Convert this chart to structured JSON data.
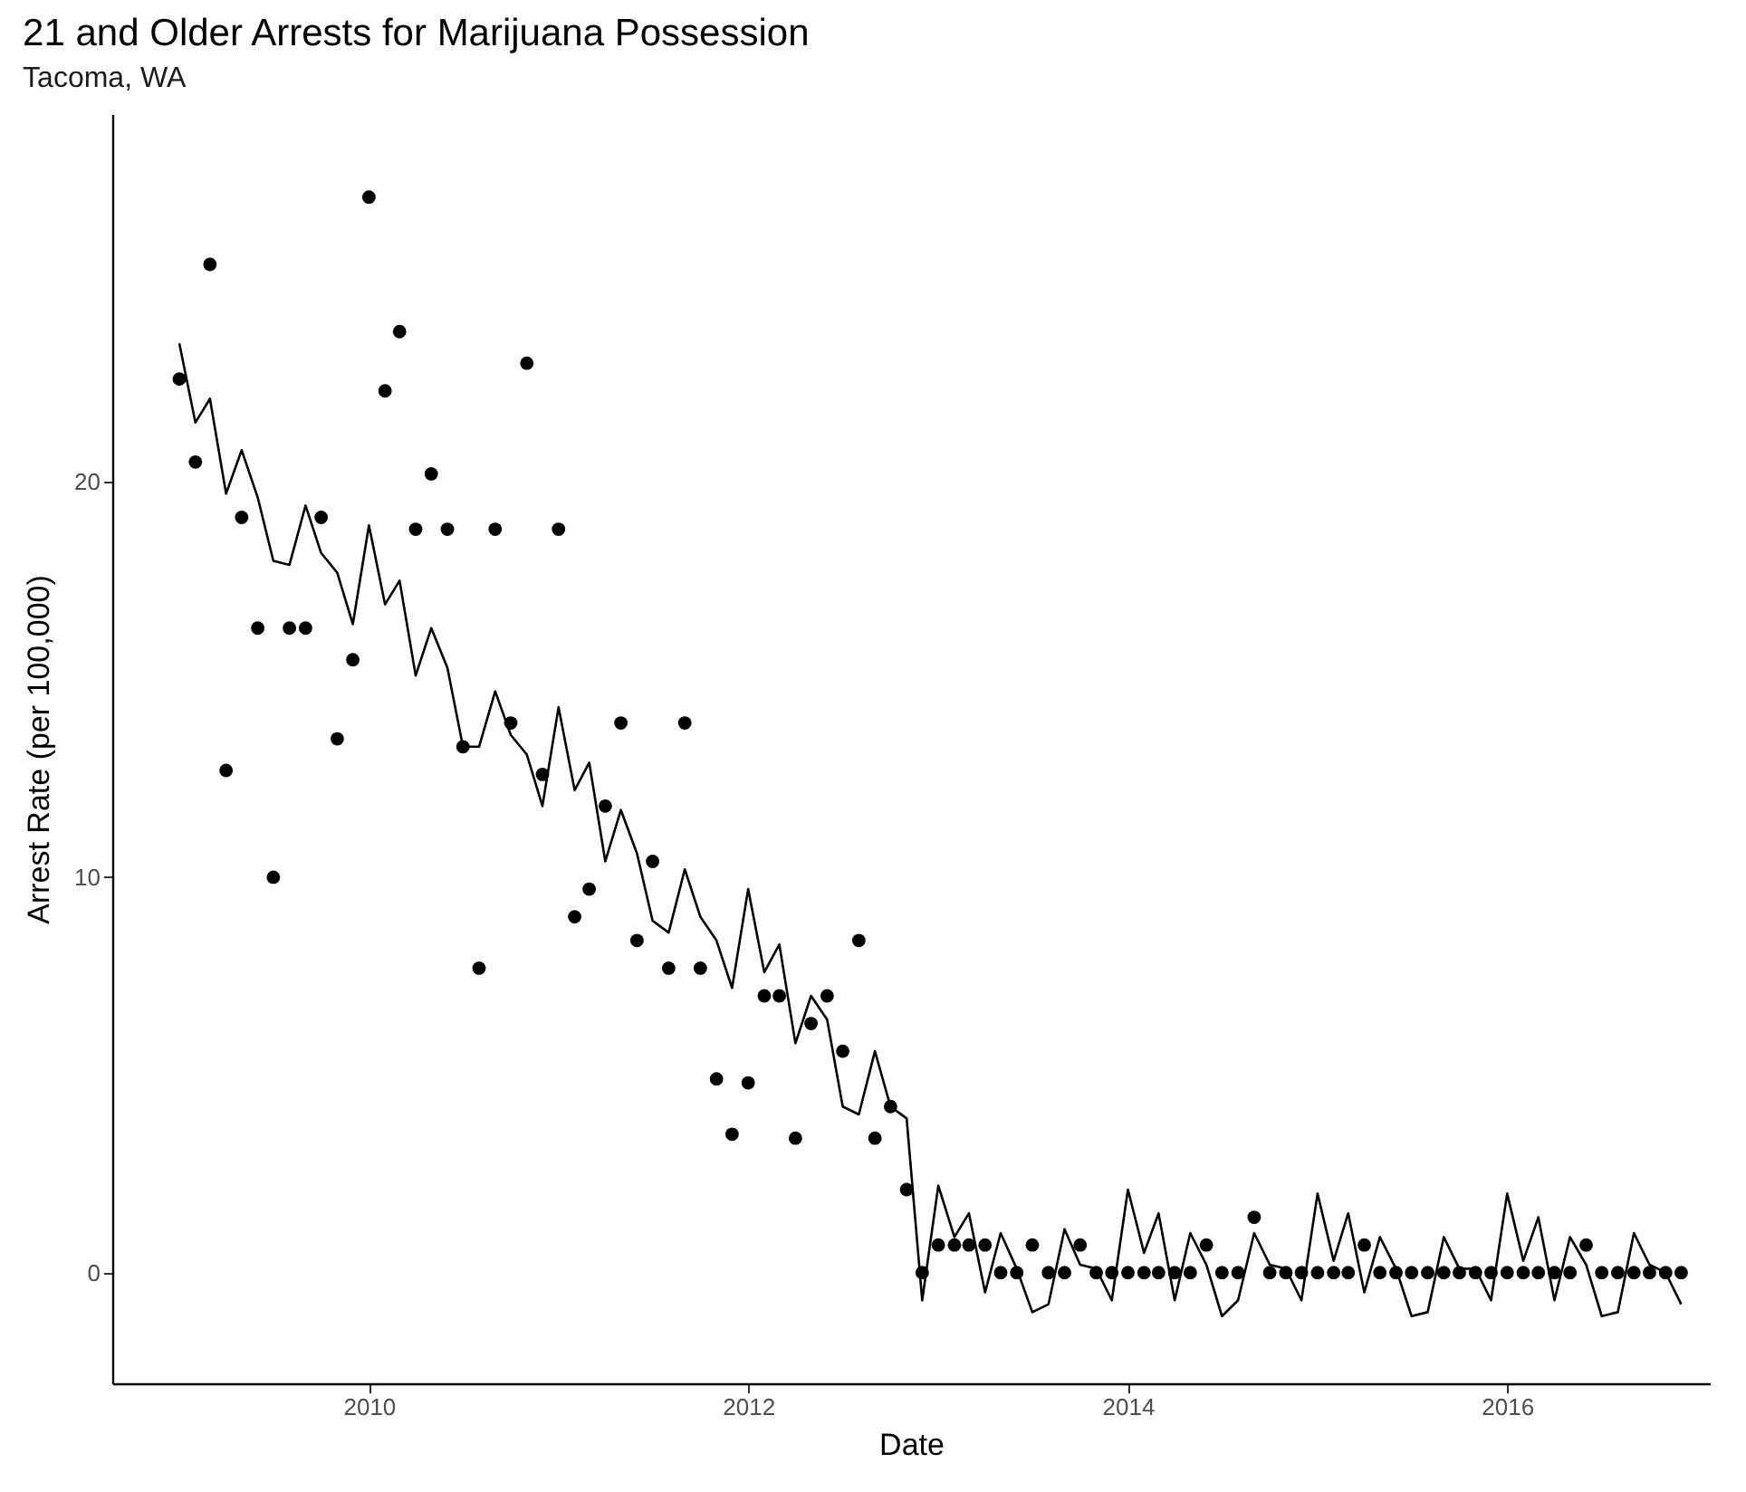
{
  "chart_data": {
    "type": "scatter",
    "title": "21 and Older Arrests for Marijuana Possession",
    "subtitle": "Tacoma, WA",
    "xlabel": "Date",
    "ylabel": "Arrest Rate (per 100,000)",
    "x": [
      "2009-01",
      "2009-02",
      "2009-03",
      "2009-04",
      "2009-05",
      "2009-06",
      "2009-07",
      "2009-08",
      "2009-09",
      "2009-10",
      "2009-11",
      "2009-12",
      "2010-01",
      "2010-02",
      "2010-03",
      "2010-04",
      "2010-05",
      "2010-06",
      "2010-07",
      "2010-08",
      "2010-09",
      "2010-10",
      "2010-11",
      "2010-12",
      "2011-01",
      "2011-02",
      "2011-03",
      "2011-04",
      "2011-05",
      "2011-06",
      "2011-07",
      "2011-08",
      "2011-09",
      "2011-10",
      "2011-11",
      "2011-12",
      "2012-01",
      "2012-02",
      "2012-03",
      "2012-04",
      "2012-05",
      "2012-06",
      "2012-07",
      "2012-08",
      "2012-09",
      "2012-10",
      "2012-11",
      "2012-12",
      "2013-01",
      "2013-02",
      "2013-03",
      "2013-04",
      "2013-05",
      "2013-06",
      "2013-07",
      "2013-08",
      "2013-09",
      "2013-10",
      "2013-11",
      "2013-12",
      "2014-01",
      "2014-02",
      "2014-03",
      "2014-04",
      "2014-05",
      "2014-06",
      "2014-07",
      "2014-08",
      "2014-09",
      "2014-10",
      "2014-11",
      "2014-12",
      "2015-01",
      "2015-02",
      "2015-03",
      "2015-04",
      "2015-05",
      "2015-06",
      "2015-07",
      "2015-08",
      "2015-09",
      "2015-10",
      "2015-11",
      "2015-12",
      "2016-01",
      "2016-02",
      "2016-03",
      "2016-04",
      "2016-05",
      "2016-06",
      "2016-07",
      "2016-08",
      "2016-09",
      "2016-10",
      "2016-11",
      "2016-12"
    ],
    "series": [
      {
        "color": "#000000",
        "values": [
          22.6,
          20.5,
          25.5,
          12.7,
          19.1,
          16.3,
          10.0,
          16.3,
          16.3,
          19.1,
          13.5,
          15.5,
          27.2,
          22.3,
          23.8,
          18.8,
          20.2,
          18.8,
          13.3,
          7.7,
          18.8,
          13.9,
          23.0,
          12.6,
          18.8,
          9.0,
          9.7,
          11.8,
          13.9,
          8.4,
          10.4,
          7.7,
          13.9,
          7.7,
          4.9,
          3.5,
          4.8,
          7.0,
          7.0,
          3.4,
          6.3,
          7.0,
          5.6,
          8.4,
          3.4,
          4.2,
          2.1,
          0,
          0.7,
          0.7,
          0.7,
          0.7,
          0,
          0,
          0.7,
          0,
          0,
          0.7,
          0,
          0,
          0,
          0,
          0,
          0,
          0,
          0.7,
          0,
          0,
          1.4,
          0,
          0,
          0,
          0,
          0,
          0,
          0.7,
          0,
          0,
          0,
          0,
          0,
          0,
          0,
          0,
          0,
          0,
          0,
          0,
          0,
          0.7,
          0,
          0,
          0,
          0,
          0,
          0
        ]
      },
      {
        "type": "line",
        "color": "#000000",
        "values": [
          23.5,
          21.5,
          22.1,
          19.7,
          20.8,
          19.6,
          18.0,
          17.9,
          19.4,
          18.2,
          17.7,
          16.4,
          18.9,
          16.9,
          17.5,
          15.1,
          16.3,
          15.3,
          13.3,
          13.3,
          14.7,
          13.6,
          13.1,
          11.8,
          14.3,
          12.2,
          12.9,
          10.4,
          11.7,
          10.6,
          8.9,
          8.6,
          10.2,
          9.0,
          8.4,
          7.2,
          9.7,
          7.6,
          8.3,
          5.8,
          7.0,
          6.4,
          4.2,
          4.0,
          5.6,
          4.2,
          3.9,
          -0.7,
          2.2,
          0.9,
          1.5,
          -0.5,
          1.0,
          0.1,
          -1.0,
          -0.8,
          1.1,
          0.2,
          0.1,
          -0.7,
          2.1,
          0.5,
          1.5,
          -0.7,
          1.0,
          0.2,
          -1.1,
          -0.7,
          1.0,
          0.2,
          0.1,
          -0.7,
          2.0,
          0.3,
          1.5,
          -0.5,
          0.9,
          0.1,
          -1.1,
          -1.0,
          0.9,
          0.1,
          0.1,
          -0.7,
          2.0,
          0.3,
          1.4,
          -0.7,
          0.9,
          0.2,
          -1.1,
          -1.0,
          1.0,
          0.2,
          0.0,
          -0.8
        ]
      }
    ],
    "xlim": [
      "2008-08-25",
      "2017-01-25"
    ],
    "xticks": [
      "2010",
      "2012",
      "2014",
      "2016"
    ],
    "ylim": [
      -2.8,
      29.3
    ],
    "yticks": [
      0,
      10,
      20
    ],
    "grid": false
  }
}
